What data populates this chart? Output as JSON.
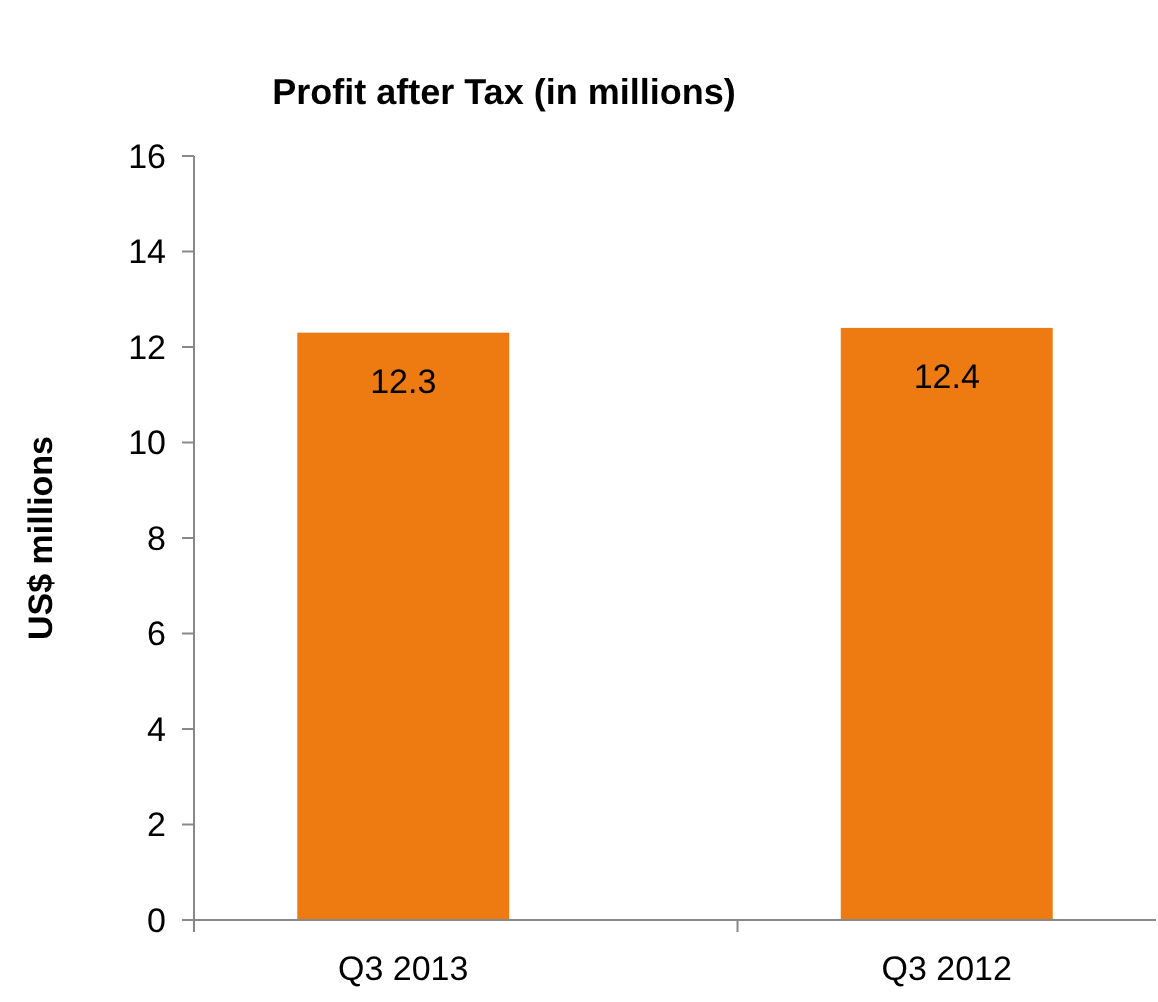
{
  "chart_data": {
    "type": "bar",
    "title": "Profit after Tax (in millions)",
    "ylabel": "US$ millions",
    "categories": [
      "Q3 2013",
      "Q3 2012"
    ],
    "values": [
      12.3,
      12.4
    ],
    "color": "#ee7a12",
    "ylim": [
      0,
      16
    ],
    "yticks": [
      0,
      2,
      4,
      6,
      8,
      10,
      12,
      14,
      16
    ],
    "grid": false,
    "data_labels": true
  }
}
